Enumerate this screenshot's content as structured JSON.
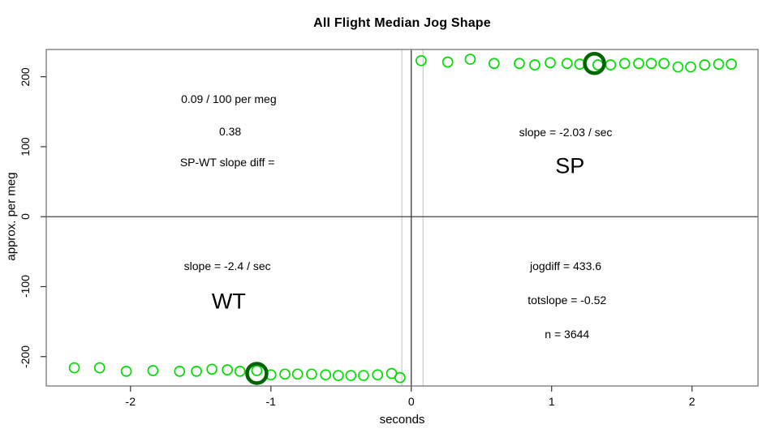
{
  "chart_data": {
    "type": "scatter",
    "title": "All Flight Median Jog Shape",
    "xlabel": "seconds",
    "ylabel": "approx. per meg",
    "xlim": [
      -2.6,
      2.47
    ],
    "ylim": [
      -242,
      239
    ],
    "x_ticks": [
      -2,
      -1,
      0,
      1,
      2
    ],
    "x_tick_labels": [
      "-2",
      "-1",
      "0",
      "1",
      "2"
    ],
    "y_ticks": [
      -200,
      -100,
      0,
      100,
      200
    ],
    "y_tick_labels": [
      "-200",
      "-100",
      "0",
      "100",
      "200"
    ],
    "grid": false,
    "legend": "none",
    "colors": {
      "point": "#00dd00",
      "highlight": "#006400",
      "box": "#777777",
      "tick": "#333333",
      "zero_line": "#2b2b2b",
      "guide_line": "#cfcfcf",
      "text": "#000000",
      "background": "#ffffff"
    },
    "reference_lines": {
      "horizontal_black": [
        0
      ],
      "vertical_black": [
        0
      ],
      "vertical_gray_guides": [
        -0.067,
        0.084
      ]
    },
    "series": [
      {
        "name": "WT",
        "points": [
          [
            -2.4,
            -216
          ],
          [
            -2.22,
            -216
          ],
          [
            -2.03,
            -221
          ],
          [
            -1.84,
            -220
          ],
          [
            -1.65,
            -221
          ],
          [
            -1.53,
            -221
          ],
          [
            -1.42,
            -218
          ],
          [
            -1.31,
            -219
          ],
          [
            -1.22,
            -221
          ],
          [
            -1.1,
            -220
          ],
          [
            -1.0,
            -226
          ],
          [
            -0.9,
            -225
          ],
          [
            -0.81,
            -225
          ],
          [
            -0.71,
            -225
          ],
          [
            -0.61,
            -226
          ],
          [
            -0.52,
            -227
          ],
          [
            -0.43,
            -227
          ],
          [
            -0.34,
            -227
          ],
          [
            -0.24,
            -226
          ],
          [
            -0.14,
            -224
          ],
          [
            -0.08,
            -230
          ]
        ]
      },
      {
        "name": "SP",
        "points": [
          [
            0.07,
            223
          ],
          [
            0.26,
            221
          ],
          [
            0.42,
            225
          ],
          [
            0.59,
            219
          ],
          [
            0.77,
            219
          ],
          [
            0.88,
            217
          ],
          [
            0.99,
            220
          ],
          [
            1.11,
            219
          ],
          [
            1.2,
            218
          ],
          [
            1.33,
            217
          ],
          [
            1.42,
            217
          ],
          [
            1.52,
            219
          ],
          [
            1.62,
            219
          ],
          [
            1.71,
            219
          ],
          [
            1.8,
            219
          ],
          [
            1.9,
            214
          ],
          [
            1.99,
            214
          ],
          [
            2.09,
            217
          ],
          [
            2.19,
            218
          ],
          [
            2.28,
            218
          ]
        ]
      }
    ],
    "highlight_points": [
      {
        "series": "WT",
        "x": -1.1,
        "y": -224
      },
      {
        "series": "SP",
        "x": 1.305,
        "y": 219
      }
    ],
    "annotations": [
      {
        "id": "slope-diff-rate",
        "text": "0.09 / 100 per meg",
        "x": -1.3,
        "y": 168,
        "size": 14
      },
      {
        "id": "slope-diff-value",
        "text": "0.38",
        "x": -1.29,
        "y": 122,
        "size": 14
      },
      {
        "id": "slope-diff-label",
        "text": "SP-WT slope diff =",
        "x": -1.31,
        "y": 78,
        "size": 14
      },
      {
        "id": "sp-slope",
        "text": "slope = -2.03 / sec",
        "x": 1.1,
        "y": 121,
        "size": 14
      },
      {
        "id": "sp-group-label",
        "text": "SP",
        "x": 1.13,
        "y": 72,
        "size": 27
      },
      {
        "id": "wt-slope",
        "text": "slope = -2.4 / sec",
        "x": -1.31,
        "y": -71,
        "size": 14
      },
      {
        "id": "wt-group-label",
        "text": "WT",
        "x": -1.3,
        "y": -122,
        "size": 27
      },
      {
        "id": "jogdiff",
        "text": "jogdiff = 433.6",
        "x": 1.1,
        "y": -71,
        "size": 14
      },
      {
        "id": "totslope",
        "text": "totslope = -0.52",
        "x": 1.11,
        "y": -119,
        "size": 14
      },
      {
        "id": "n-count",
        "text": "n = 3644",
        "x": 1.11,
        "y": -168,
        "size": 14
      }
    ]
  }
}
